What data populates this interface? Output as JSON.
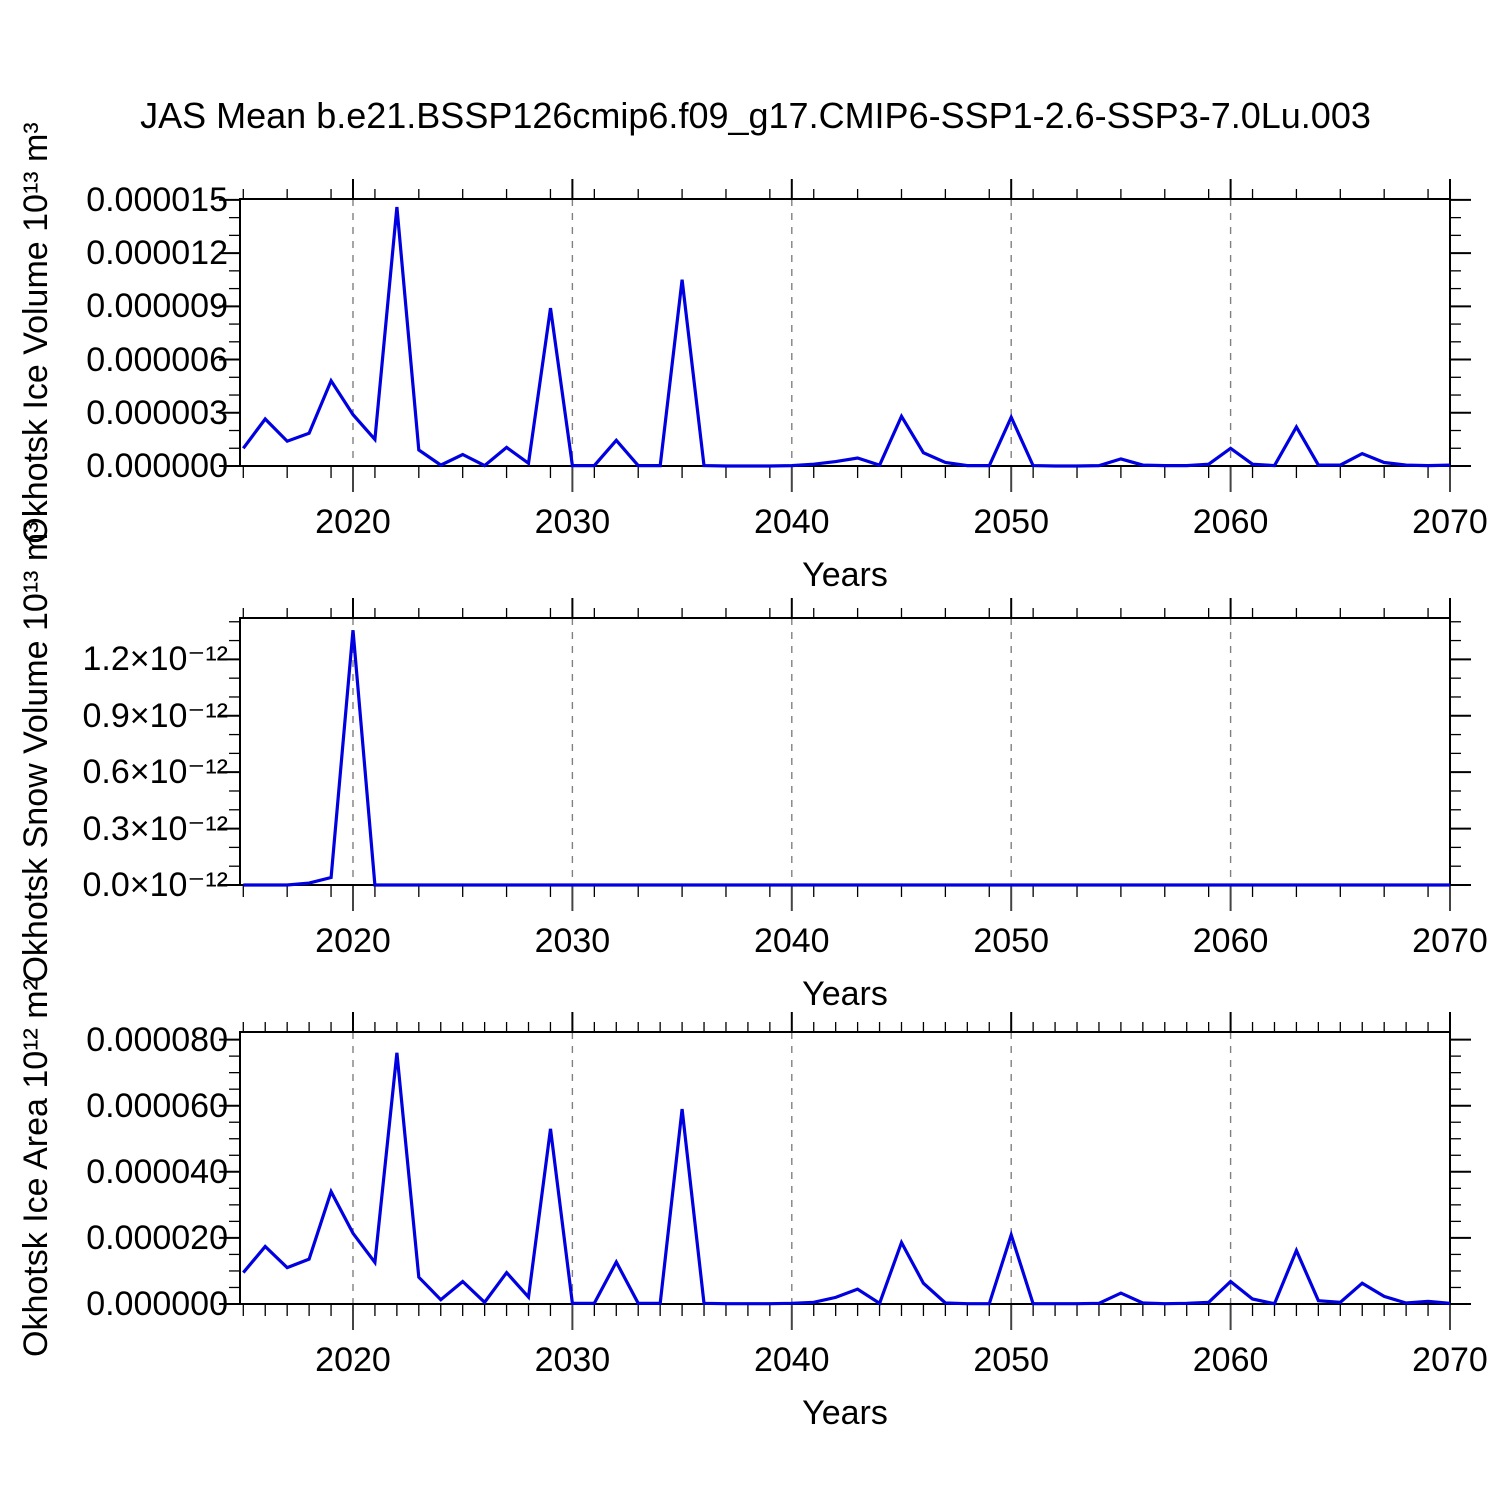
{
  "chart_data": {
    "type": "line",
    "title": "JAS Mean b.e21.BSSP126cmip6.f09_g17.CMIP6-SSP1-2.6-SSP3-7.0Lu.003",
    "line_color": "#0000e0",
    "gridline_color": "#808080",
    "background": "#ffffff",
    "legend": "none",
    "grid": "vertical-dashed-at-decades",
    "x": {
      "min": 2014.85,
      "max": 2070,
      "major_ticks": [
        2020,
        2030,
        2040,
        2050,
        2060,
        2070
      ],
      "x_tick_labels": [
        "2020",
        "2030",
        "2040",
        "2050",
        "2060",
        "2070"
      ],
      "gridlines": [
        2020,
        2030,
        2040,
        2050,
        2060
      ]
    },
    "years": [
      2015,
      2016,
      2017,
      2018,
      2019,
      2020,
      2021,
      2022,
      2023,
      2024,
      2025,
      2026,
      2027,
      2028,
      2029,
      2030,
      2031,
      2032,
      2033,
      2034,
      2035,
      2036,
      2037,
      2038,
      2039,
      2040,
      2041,
      2042,
      2043,
      2044,
      2045,
      2046,
      2047,
      2048,
      2049,
      2050,
      2051,
      2052,
      2053,
      2054,
      2055,
      2056,
      2057,
      2058,
      2059,
      2060,
      2061,
      2062,
      2063,
      2064,
      2065,
      2066,
      2067,
      2068,
      2069,
      2070
    ],
    "panels": [
      {
        "name": "okhotsk-ice-volume",
        "y_label": "Okhotsk Ice Volume 10¹³ m³",
        "x_label": "Years",
        "value_scale": 1e-06,
        "y_max": 15.05,
        "y_tick_values": [
          0,
          3,
          6,
          9,
          12,
          15
        ],
        "y_tick_labels": [
          "0.000000",
          "0.000003",
          "0.000006",
          "0.000009",
          "0.000012",
          "0.000015"
        ],
        "y_minor_step": 1,
        "x_minor_step": 2,
        "values": [
          1.0,
          2.65,
          1.4,
          1.85,
          4.8,
          2.9,
          1.5,
          14.6,
          0.9,
          0.05,
          0.65,
          0.02,
          1.05,
          0.15,
          8.9,
          0.02,
          0.02,
          1.45,
          0.02,
          0.02,
          10.5,
          0.02,
          0,
          0,
          0,
          0.02,
          0.1,
          0.25,
          0.45,
          0.05,
          2.8,
          0.75,
          0.2,
          0.02,
          0.02,
          2.75,
          0.02,
          0,
          0,
          0.02,
          0.4,
          0.05,
          0.02,
          0.02,
          0.1,
          1.0,
          0.1,
          0.02,
          2.2,
          0.05,
          0.05,
          0.7,
          0.2,
          0.05,
          0.02,
          0.05
        ]
      },
      {
        "name": "okhotsk-snow-volume",
        "y_label": "Okhotsk Snow Volume 10¹³ m³",
        "x_label": "Years",
        "value_scale": 1e-12,
        "y_max": 1.42,
        "y_tick_values": [
          0,
          0.3,
          0.6,
          0.9,
          1.2
        ],
        "y_tick_labels": [
          "0.0×10⁻¹²",
          "0.3×10⁻¹²",
          "0.6×10⁻¹²",
          "0.9×10⁻¹²",
          "1.2×10⁻¹²"
        ],
        "y_minor_step": 0.1,
        "x_minor_step": 2,
        "values": [
          0,
          0,
          0,
          0.01,
          0.04,
          1.355,
          0,
          0,
          0,
          0,
          0,
          0,
          0,
          0,
          0,
          0,
          0,
          0,
          0,
          0,
          0,
          0,
          0,
          0,
          0,
          0,
          0,
          0,
          0,
          0,
          0,
          0,
          0,
          0,
          0,
          0,
          0,
          0,
          0,
          0,
          0,
          0,
          0,
          0,
          0,
          0,
          0,
          0,
          0,
          0,
          0,
          0,
          0,
          0,
          0,
          0
        ]
      },
      {
        "name": "okhotsk-ice-area",
        "y_label": "Okhotsk Ice Area 10¹² m²",
        "x_label": "Years",
        "value_scale": 1e-06,
        "y_max": 82.3,
        "y_tick_values": [
          0,
          20,
          40,
          60,
          80
        ],
        "y_tick_labels": [
          "0.000000",
          "0.000020",
          "0.000040",
          "0.000060",
          "0.000080"
        ],
        "y_minor_step": 5,
        "x_minor_step": 1,
        "values": [
          9.5,
          17.4,
          11.0,
          13.6,
          34.0,
          21.4,
          12.6,
          76.0,
          8.1,
          1.3,
          6.8,
          0.5,
          9.5,
          2.1,
          53.0,
          0.2,
          0.2,
          12.7,
          0.2,
          0.2,
          59.0,
          0.2,
          0.1,
          0.1,
          0.1,
          0.2,
          0.5,
          2.0,
          4.5,
          0.2,
          18.6,
          6.3,
          0.3,
          0.1,
          0.1,
          20.9,
          0.1,
          0.1,
          0.1,
          0.2,
          3.3,
          0.3,
          0.1,
          0.2,
          0.5,
          6.8,
          1.5,
          0.1,
          16.2,
          1.0,
          0.5,
          6.3,
          2.3,
          0.3,
          0.8,
          0.2
        ]
      }
    ]
  }
}
